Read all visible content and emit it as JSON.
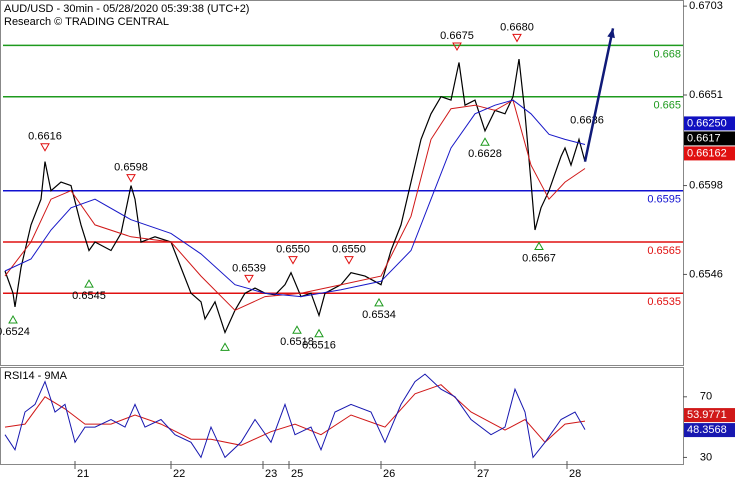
{
  "chart_data": [
    {
      "type": "line",
      "title": "AUD/USD - 30min - 05/28/2020 05:39:38 (UTC+2)",
      "subtitle": "Research © TRADING CENTRAL",
      "xlim": [
        0,
        340
      ],
      "ylim": [
        0.6493,
        0.6706
      ],
      "yticks": [
        0.6703,
        0.6651,
        0.6598,
        0.6546
      ],
      "series": [
        {
          "color": "#000000",
          "x": [
            1,
            5,
            6,
            9,
            14,
            19,
            21,
            24,
            29,
            34,
            39,
            43,
            46,
            54,
            59,
            64,
            66,
            69,
            76,
            84,
            89,
            94,
            99,
            101,
            106,
            111,
            116,
            121,
            126,
            131,
            136,
            141,
            144,
            149,
            154,
            158,
            161,
            169,
            174,
            181,
            189,
            194,
            199,
            204,
            209,
            214,
            219,
            224,
            228,
            231,
            236,
            241,
            246,
            251,
            255,
            258,
            261,
            264,
            266,
            269,
            273,
            276,
            279,
            281,
            284,
            288,
            291
          ],
          "values": [
            0.6548,
            0.6535,
            0.6527,
            0.655,
            0.6575,
            0.659,
            0.6612,
            0.6595,
            0.66,
            0.6598,
            0.6575,
            0.656,
            0.6565,
            0.656,
            0.657,
            0.6598,
            0.659,
            0.6565,
            0.6568,
            0.6565,
            0.655,
            0.6535,
            0.653,
            0.652,
            0.653,
            0.6512,
            0.6525,
            0.6535,
            0.6538,
            0.6535,
            0.6534,
            0.654,
            0.6547,
            0.6533,
            0.6535,
            0.6522,
            0.6535,
            0.654,
            0.6547,
            0.6545,
            0.654,
            0.656,
            0.6575,
            0.66,
            0.6625,
            0.664,
            0.665,
            0.6648,
            0.667,
            0.6645,
            0.6648,
            0.663,
            0.6642,
            0.664,
            0.665,
            0.6672,
            0.664,
            0.66,
            0.6572,
            0.6585,
            0.6595,
            0.6605,
            0.6615,
            0.662,
            0.661,
            0.6625,
            0.6612
          ]
        },
        {
          "color": "#d01818",
          "x": [
            1,
            14,
            24,
            34,
            46,
            64,
            84,
            99,
            116,
            131,
            149,
            169,
            189,
            204,
            214,
            224,
            236,
            246,
            255,
            264,
            273,
            281,
            291
          ],
          "values": [
            0.6545,
            0.6565,
            0.659,
            0.6595,
            0.6575,
            0.6568,
            0.6565,
            0.6545,
            0.6525,
            0.6533,
            0.6535,
            0.654,
            0.6545,
            0.658,
            0.6625,
            0.6643,
            0.6645,
            0.6642,
            0.6648,
            0.661,
            0.659,
            0.66,
            0.6608
          ]
        },
        {
          "color": "#1818c8",
          "x": [
            1,
            14,
            24,
            34,
            46,
            64,
            84,
            99,
            116,
            131,
            149,
            169,
            189,
            204,
            214,
            224,
            236,
            246,
            255,
            264,
            273,
            281,
            291
          ],
          "values": [
            0.6548,
            0.6555,
            0.6572,
            0.6585,
            0.659,
            0.6578,
            0.657,
            0.6558,
            0.654,
            0.6535,
            0.6533,
            0.6537,
            0.6542,
            0.656,
            0.659,
            0.662,
            0.664,
            0.6645,
            0.6648,
            0.664,
            0.6628,
            0.6625,
            0.6622
          ]
        }
      ],
      "levels": [
        {
          "value": 0.668,
          "color": "#1e9a1e"
        },
        {
          "value": 0.665,
          "color": "#1e9a1e"
        },
        {
          "value": 0.6595,
          "color": "#1010d0"
        },
        {
          "value": 0.6565,
          "color": "#e01010"
        },
        {
          "value": 0.6535,
          "color": "#e01010"
        }
      ],
      "annotations": [
        {
          "x": 21,
          "value": 0.6616,
          "label": "0.6616",
          "kind": "peak"
        },
        {
          "x": 64,
          "value": 0.6598,
          "label": "0.6598",
          "kind": "peak"
        },
        {
          "x": 5,
          "value": 0.6524,
          "label": "0.6524",
          "kind": "trough"
        },
        {
          "x": 43,
          "value": 0.6545,
          "label": "0.6545",
          "kind": "trough"
        },
        {
          "x": 123,
          "value": 0.6539,
          "label": "0.6539",
          "kind": "peak"
        },
        {
          "x": 145,
          "value": 0.655,
          "label": "0.6550",
          "kind": "peak"
        },
        {
          "x": 173,
          "value": 0.655,
          "label": "0.6550",
          "kind": "peak"
        },
        {
          "x": 111,
          "value": 0.6508,
          "kind": "trough"
        },
        {
          "x": 147,
          "value": 0.6518,
          "label": "0.6518",
          "kind": "trough"
        },
        {
          "x": 158,
          "value": 0.6516,
          "label": "0.6516",
          "kind": "trough"
        },
        {
          "x": 188,
          "value": 0.6534,
          "label": "0.6534",
          "kind": "trough"
        },
        {
          "x": 227,
          "value": 0.6675,
          "label": "0.6675",
          "kind": "peak"
        },
        {
          "x": 257,
          "value": 0.668,
          "label": "0.6680",
          "kind": "peak"
        },
        {
          "x": 241,
          "value": 0.6628,
          "label": "0.6628",
          "kind": "trough"
        },
        {
          "x": 268,
          "value": 0.6567,
          "label": "0.6567",
          "kind": "trough"
        },
        {
          "x": 292,
          "value": 0.6636,
          "label": "0.6636",
          "kind": "text"
        }
      ],
      "forecast": {
        "x": [
          291,
          305
        ],
        "values": [
          0.6612,
          0.669
        ],
        "color": "#101a78"
      },
      "current": [
        {
          "value": 0.6625,
          "label": "0.66250",
          "color": "#1010c0"
        },
        {
          "value": 0.6617,
          "label": "0.6617",
          "color": "#000000"
        },
        {
          "value": 0.66162,
          "label": "0.66162",
          "color": "#e01010"
        }
      ]
    },
    {
      "type": "line",
      "title": "RSI14 - 9MA",
      "xlim": [
        0,
        340
      ],
      "ylim": [
        25,
        89
      ],
      "yticks": [
        70,
        30
      ],
      "xticks": [
        {
          "value": 36,
          "label": "21"
        },
        {
          "value": 84,
          "label": "22"
        },
        {
          "value": 130,
          "label": "23"
        },
        {
          "value": 143,
          "label": "25"
        },
        {
          "value": 189,
          "label": "26"
        },
        {
          "value": 236,
          "label": "27"
        },
        {
          "value": 282,
          "label": "28"
        }
      ],
      "series": [
        {
          "color": "#d01818",
          "x": [
            1,
            11,
            21,
            31,
            41,
            54,
            66,
            79,
            94,
            104,
            119,
            134,
            146,
            159,
            174,
            191,
            206,
            219,
            234,
            251,
            261,
            271,
            281,
            291
          ],
          "values": [
            50,
            52,
            70,
            62,
            52,
            52,
            58,
            52,
            42,
            42,
            38,
            47,
            52,
            45,
            58,
            50,
            72,
            78,
            60,
            48,
            55,
            40,
            52,
            53.9771
          ]
        },
        {
          "color": "#1818b0",
          "x": [
            1,
            6,
            11,
            16,
            21,
            26,
            31,
            36,
            41,
            46,
            54,
            61,
            66,
            71,
            79,
            86,
            94,
            99,
            104,
            111,
            119,
            126,
            134,
            141,
            146,
            154,
            159,
            166,
            174,
            184,
            191,
            199,
            206,
            211,
            219,
            226,
            234,
            244,
            251,
            256,
            261,
            265,
            271,
            279,
            286,
            291
          ],
          "values": [
            45,
            35,
            60,
            65,
            80,
            60,
            65,
            40,
            50,
            50,
            55,
            50,
            65,
            50,
            55,
            45,
            40,
            30,
            50,
            30,
            40,
            55,
            40,
            65,
            45,
            50,
            35,
            60,
            65,
            60,
            40,
            65,
            80,
            85,
            75,
            70,
            55,
            45,
            50,
            75,
            60,
            30,
            40,
            55,
            60,
            48.3568
          ]
        }
      ]
    }
  ]
}
